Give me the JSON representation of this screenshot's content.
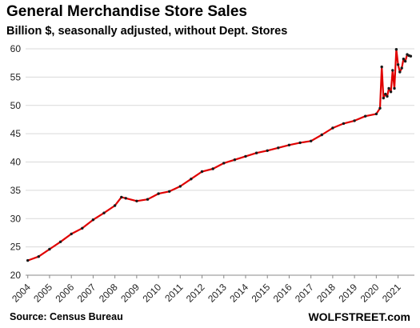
{
  "title": "General Merchandise Store Sales",
  "subtitle": "Billion $, seasonally adjusted, without Dept. Stores",
  "source": "Source: Census Bureau",
  "brand": "WOLFSTREET.com",
  "colors": {
    "line": "#e00000",
    "markers": "#1a1a1a",
    "grid": "#d9d9d9",
    "axis": "#888888"
  },
  "chart_data": {
    "type": "line",
    "title": "General Merchandise Store Sales",
    "subtitle": "Billion $, seasonally adjusted, without Dept. Stores",
    "xlabel": "",
    "ylabel": "",
    "ylim": [
      20,
      60
    ],
    "yticks": [
      20,
      25,
      30,
      35,
      40,
      45,
      50,
      55,
      60
    ],
    "x_tick_labels": [
      "2004",
      "2005",
      "2006",
      "2007",
      "2008",
      "2009",
      "2010",
      "2011",
      "2012",
      "2013",
      "2014",
      "2015",
      "2016",
      "2017",
      "2018",
      "2019",
      "2020",
      "2021"
    ],
    "grid": "horizontal",
    "series": [
      {
        "x": [
          2004.0,
          2004.5,
          2005.0,
          2005.5,
          2006.0,
          2006.5,
          2007.0,
          2007.5,
          2008.0,
          2008.3,
          2008.5,
          2009.0,
          2009.5,
          2010.0,
          2010.5,
          2011.0,
          2011.5,
          2012.0,
          2012.5,
          2013.0,
          2013.5,
          2014.0,
          2014.5,
          2015.0,
          2015.5,
          2016.0,
          2016.5,
          2017.0,
          2017.5,
          2018.0,
          2018.5,
          2019.0,
          2019.5,
          2020.0,
          2020.17,
          2020.25,
          2020.33,
          2020.42,
          2020.5,
          2020.58,
          2020.67,
          2020.75,
          2020.83,
          2020.92,
          2021.0,
          2021.08,
          2021.17,
          2021.25,
          2021.33,
          2021.42,
          2021.5,
          2021.58
        ],
        "values": [
          22.6,
          23.3,
          24.6,
          25.9,
          27.3,
          28.3,
          29.8,
          31.0,
          32.3,
          33.8,
          33.6,
          33.1,
          33.4,
          34.4,
          34.8,
          35.7,
          37.0,
          38.3,
          38.8,
          39.8,
          40.4,
          41.0,
          41.6,
          42.0,
          42.5,
          43.0,
          43.4,
          43.7,
          44.8,
          46.0,
          46.8,
          47.3,
          48.1,
          48.5,
          49.5,
          56.8,
          51.3,
          52.0,
          51.6,
          53.0,
          52.4,
          56.2,
          53.0,
          59.9,
          57.2,
          55.9,
          56.6,
          58.2,
          57.8,
          59.0,
          58.8,
          58.7
        ]
      }
    ]
  }
}
